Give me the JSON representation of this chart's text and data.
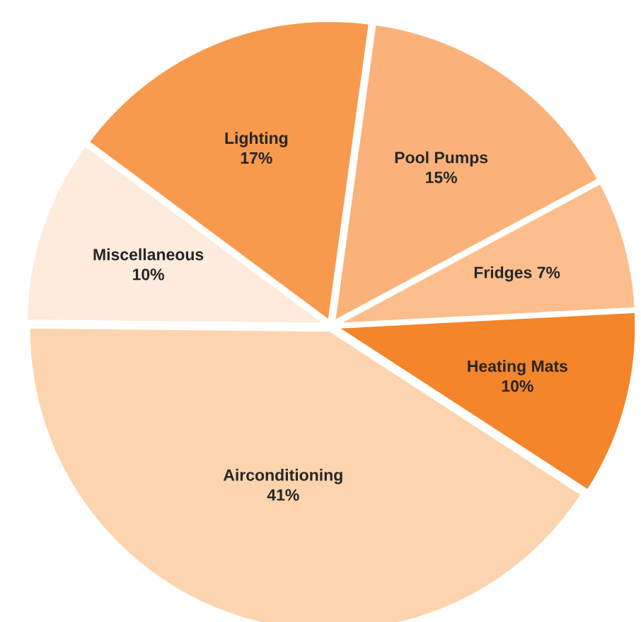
{
  "chart_data": {
    "type": "pie",
    "categories": [
      "Lighting",
      "Pool Pumps",
      "Fridges",
      "Heating Mats",
      "Airconditioning",
      "Miscellaneous"
    ],
    "values": [
      17,
      15,
      7,
      10,
      41,
      10
    ],
    "value_labels": [
      "17%",
      "15%",
      "7%",
      "10%",
      "41%",
      "10%"
    ],
    "colors": [
      "#f79a4e",
      "#fab27a",
      "#fbbe8c",
      "#f4852a",
      "#fcd5b0",
      "#fdebdc"
    ]
  }
}
